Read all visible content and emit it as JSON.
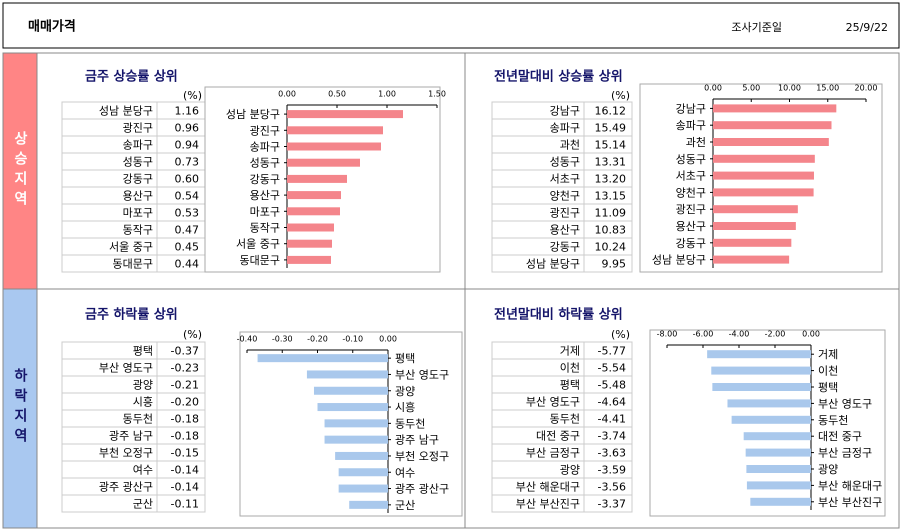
{
  "header": {
    "title": "매매가격",
    "date_label": "조사기준일",
    "date": "25/9/22"
  },
  "sections": [
    "상승지역",
    "하락지역"
  ],
  "chart_data": [
    {
      "type": "bar",
      "title": "금주 상승률 상위",
      "unit": "(%)",
      "color": "#f4858b",
      "categories": [
        "성남 분당구",
        "광진구",
        "송파구",
        "성동구",
        "강동구",
        "용산구",
        "마포구",
        "동작구",
        "서울 중구",
        "동대문구"
      ],
      "values": [
        1.16,
        0.96,
        0.94,
        0.73,
        0.6,
        0.54,
        0.53,
        0.47,
        0.45,
        0.44
      ],
      "value_labels": [
        "1.16",
        "0.96",
        "0.94",
        "0.73",
        "0.60",
        "0.54",
        "0.53",
        "0.47",
        "0.45",
        "0.44"
      ],
      "xlim": [
        0,
        1.5
      ],
      "xticks": [
        {
          "value": 0,
          "label": "0.00"
        },
        {
          "value": 0.5,
          "label": "0.50"
        },
        {
          "value": 1,
          "label": "1.00"
        },
        {
          "value": 1.5,
          "label": "1.50"
        }
      ]
    },
    {
      "type": "bar",
      "title": "전년말대비 상승률 상위",
      "unit": "(%)",
      "color": "#f4858b",
      "categories": [
        "강남구",
        "송파구",
        "과천",
        "성동구",
        "서초구",
        "양천구",
        "광진구",
        "용산구",
        "강동구",
        "성남 분당구"
      ],
      "values": [
        16.12,
        15.49,
        15.14,
        13.31,
        13.2,
        13.15,
        11.09,
        10.83,
        10.24,
        9.95
      ],
      "value_labels": [
        "16.12",
        "15.49",
        "15.14",
        "13.31",
        "13.20",
        "13.15",
        "11.09",
        "10.83",
        "10.24",
        "9.95"
      ],
      "xlim": [
        0,
        20
      ],
      "xticks": [
        {
          "value": 0,
          "label": "0.00"
        },
        {
          "value": 5,
          "label": "5.00"
        },
        {
          "value": 10,
          "label": "10.00"
        },
        {
          "value": 15,
          "label": "15.00"
        },
        {
          "value": 20,
          "label": "20.00"
        }
      ]
    },
    {
      "type": "bar",
      "title": "금주 하락률 상위",
      "unit": "(%)",
      "color": "#a9c8ec",
      "categories": [
        "평택",
        "부산 영도구",
        "광양",
        "시흥",
        "동두천",
        "광주 남구",
        "부천 오정구",
        "여수",
        "광주 광산구",
        "군산"
      ],
      "values": [
        -0.37,
        -0.23,
        -0.21,
        -0.2,
        -0.18,
        -0.18,
        -0.15,
        -0.14,
        -0.14,
        -0.11
      ],
      "value_labels": [
        "-0.37",
        "-0.23",
        "-0.21",
        "-0.20",
        "-0.18",
        "-0.18",
        "-0.15",
        "-0.14",
        "-0.14",
        "-0.11"
      ],
      "xlim": [
        -0.4,
        0
      ],
      "xticks": [
        {
          "value": -0.4,
          "label": "-0.40"
        },
        {
          "value": -0.3,
          "label": "-0.30"
        },
        {
          "value": -0.2,
          "label": "-0.20"
        },
        {
          "value": -0.1,
          "label": "-0.10"
        },
        {
          "value": 0,
          "label": "0.00"
        }
      ]
    },
    {
      "type": "bar",
      "title": "전년말대비 하락률 상위",
      "unit": "(%)",
      "color": "#a9c8ec",
      "categories": [
        "거제",
        "이천",
        "평택",
        "부산 영도구",
        "동두천",
        "대전 중구",
        "부산 금정구",
        "광양",
        "부산 해운대구",
        "부산 부산진구"
      ],
      "values": [
        -5.77,
        -5.54,
        -5.48,
        -4.64,
        -4.41,
        -3.74,
        -3.63,
        -3.59,
        -3.56,
        -3.37
      ],
      "value_labels": [
        "-5.77",
        "-5.54",
        "-5.48",
        "-4.64",
        "-4.41",
        "-3.74",
        "-3.63",
        "-3.59",
        "-3.56",
        "-3.37"
      ],
      "xlim": [
        -8,
        0
      ],
      "xticks": [
        {
          "value": -8,
          "label": "-8.00"
        },
        {
          "value": -6,
          "label": "-6.00"
        },
        {
          "value": -4,
          "label": "-4.00"
        },
        {
          "value": -2,
          "label": "-2.00"
        },
        {
          "value": 0,
          "label": "0.00"
        }
      ]
    }
  ]
}
